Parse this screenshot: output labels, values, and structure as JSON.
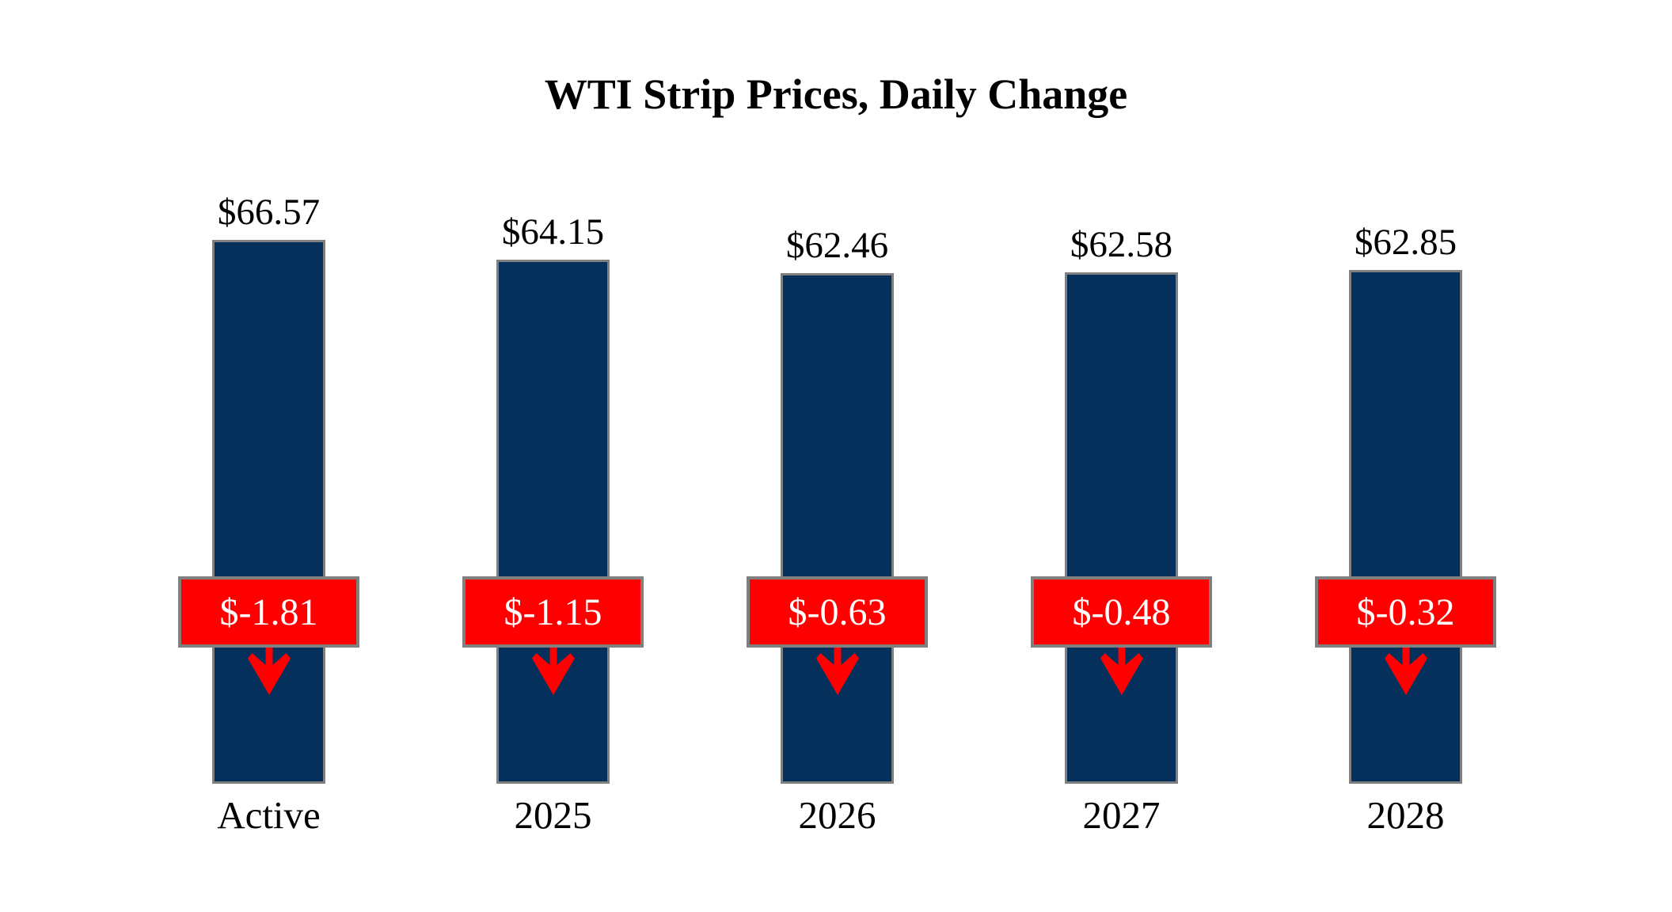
{
  "chart_data": {
    "type": "bar",
    "title": "WTI Strip Prices, Daily Change",
    "xlabel": "",
    "ylabel": "",
    "categories": [
      "Active",
      "2025",
      "2026",
      "2027",
      "2028"
    ],
    "series": [
      {
        "name": "Strip Price",
        "values": [
          66.57,
          64.15,
          62.46,
          62.58,
          62.85
        ]
      },
      {
        "name": "Daily Change",
        "values": [
          -1.81,
          -1.15,
          -0.63,
          -0.48,
          -0.32
        ]
      }
    ],
    "value_labels": [
      "$66.57",
      "$64.15",
      "$62.46",
      "$62.58",
      "$62.85"
    ],
    "change_labels": [
      "$-1.81",
      "$-1.15",
      "$-0.63",
      "$-0.48",
      "$-0.32"
    ],
    "ylim": [
      0,
      66.57
    ],
    "grid": false,
    "legend": "none",
    "colors": {
      "bar_fill": "#06305c",
      "bar_border": "#808080",
      "badge_fill": "#fe0000",
      "badge_border": "#808080",
      "badge_text": "#ffffff",
      "arrow": "#fe0000",
      "text": "#000000",
      "background": "#ffffff"
    }
  }
}
